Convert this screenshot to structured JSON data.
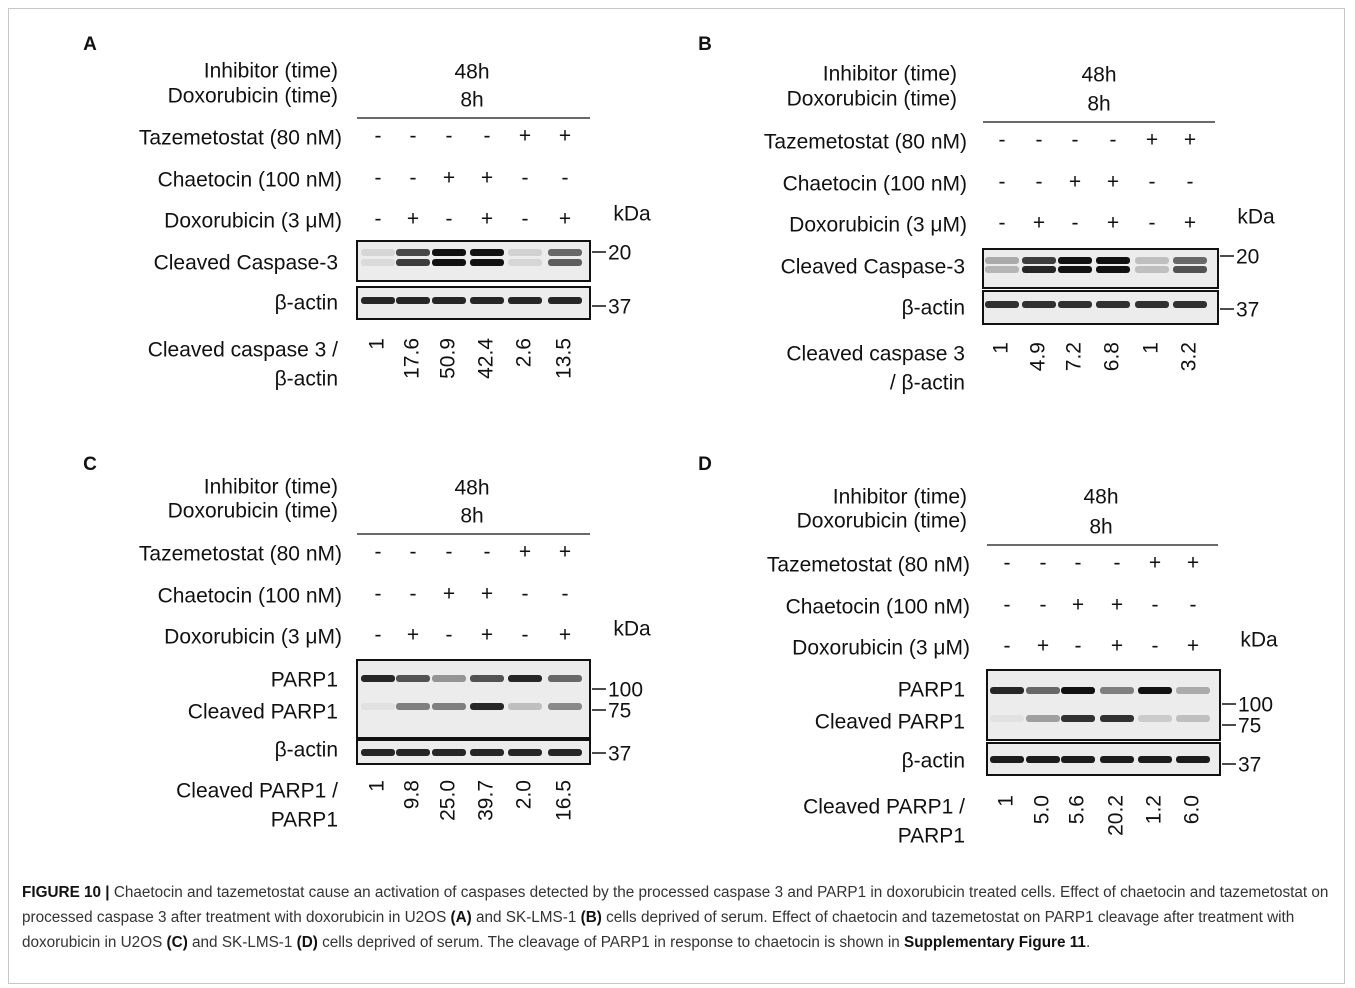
{
  "panels": [
    {
      "label": "A",
      "header": {
        "row_labels": [
          "Inhibitor (time)",
          "Doxorubicin (time)"
        ],
        "times": [
          "48h",
          "8h"
        ]
      },
      "treatments": [
        {
          "name": "Tazemetostat (80 nM)",
          "signs": [
            "-",
            "-",
            "-",
            "-",
            "+",
            "+"
          ]
        },
        {
          "name": "Chaetocin (100 nM)",
          "signs": [
            "-",
            "-",
            "+",
            "+",
            "-",
            "-"
          ]
        },
        {
          "name": "Doxorubicin (3 μM)",
          "signs": [
            "-",
            "+",
            "-",
            "+",
            "-",
            "+"
          ]
        }
      ],
      "kda": "kDa",
      "blots": [
        {
          "labels": [
            "Cleaved Caspase-3"
          ],
          "markers": [
            "20"
          ]
        },
        {
          "labels": [
            "β-actin"
          ],
          "markers": [
            "37"
          ]
        }
      ],
      "quantification": {
        "label": [
          "Cleaved caspase 3 /",
          "β-actin"
        ],
        "values": [
          "1",
          "17.6",
          "50.9",
          "42.4",
          "2.6",
          "13.5"
        ]
      }
    },
    {
      "label": "B",
      "header": {
        "row_labels": [
          "Inhibitor (time)",
          "Doxorubicin (time)"
        ],
        "times": [
          "48h",
          "8h"
        ]
      },
      "treatments": [
        {
          "name": "Tazemetostat (80 nM)",
          "signs": [
            "-",
            "-",
            "-",
            "-",
            "+",
            "+"
          ]
        },
        {
          "name": "Chaetocin (100 nM)",
          "signs": [
            "-",
            "-",
            "+",
            "+",
            "-",
            "-"
          ]
        },
        {
          "name": "Doxorubicin (3 μM)",
          "signs": [
            "-",
            "+",
            "-",
            "+",
            "-",
            "+"
          ]
        }
      ],
      "kda": "kDa",
      "blots": [
        {
          "labels": [
            "Cleaved Caspase-3"
          ],
          "markers": [
            "20"
          ]
        },
        {
          "labels": [
            "β-actin"
          ],
          "markers": [
            "37"
          ]
        }
      ],
      "quantification": {
        "label": [
          "Cleaved caspase 3",
          "/ β-actin"
        ],
        "values": [
          "1",
          "4.9",
          "7.2",
          "6.8",
          "1",
          "3.2"
        ]
      }
    },
    {
      "label": "C",
      "header": {
        "row_labels": [
          "Inhibitor (time)",
          "Doxorubicin (time)"
        ],
        "times": [
          "48h",
          "8h"
        ]
      },
      "treatments": [
        {
          "name": "Tazemetostat (80 nM)",
          "signs": [
            "-",
            "-",
            "-",
            "-",
            "+",
            "+"
          ]
        },
        {
          "name": "Chaetocin (100 nM)",
          "signs": [
            "-",
            "-",
            "+",
            "+",
            "-",
            "-"
          ]
        },
        {
          "name": "Doxorubicin (3 μM)",
          "signs": [
            "-",
            "+",
            "-",
            "+",
            "-",
            "+"
          ]
        }
      ],
      "kda": "kDa",
      "blots": [
        {
          "labels": [
            "PARP1",
            "Cleaved PARP1"
          ],
          "markers": [
            "100",
            "75"
          ]
        },
        {
          "labels": [
            "β-actin"
          ],
          "markers": [
            "37"
          ]
        }
      ],
      "quantification": {
        "label": [
          "Cleaved PARP1 /",
          "PARP1"
        ],
        "values": [
          "1",
          "9.8",
          "25.0",
          "39.7",
          "2.0",
          "16.5"
        ]
      }
    },
    {
      "label": "D",
      "header": {
        "row_labels": [
          "Inhibitor (time)",
          "Doxorubicin (time)"
        ],
        "times": [
          "48h",
          "8h"
        ]
      },
      "treatments": [
        {
          "name": "Tazemetostat (80 nM)",
          "signs": [
            "-",
            "-",
            "-",
            "-",
            "+",
            "+"
          ]
        },
        {
          "name": "Chaetocin (100 nM)",
          "signs": [
            "-",
            "-",
            "+",
            "+",
            "-",
            "-"
          ]
        },
        {
          "name": "Doxorubicin (3 μM)",
          "signs": [
            "-",
            "+",
            "-",
            "+",
            "-",
            "+"
          ]
        }
      ],
      "kda": "kDa",
      "blots": [
        {
          "labels": [
            "PARP1",
            "Cleaved PARP1"
          ],
          "markers": [
            "100",
            "75"
          ]
        },
        {
          "labels": [
            "β-actin"
          ],
          "markers": [
            "37"
          ]
        }
      ],
      "quantification": {
        "label": [
          "Cleaved PARP1 /",
          "PARP1"
        ],
        "values": [
          "1",
          "5.0",
          "5.6",
          "20.2",
          "1.2",
          "6.0"
        ]
      }
    }
  ],
  "caption": {
    "segments": [
      {
        "text": "FIGURE 10 |",
        "bold": true
      },
      {
        "text": " Chaetocin and tazemetostat cause an activation of caspases detected by the processed caspase 3 and PARP1 in doxorubicin treated cells. Effect of chaetocin and tazemetostat on processed caspase 3 after treatment with doxorubicin in U2OS ",
        "bold": false
      },
      {
        "text": "(A)",
        "bold": true
      },
      {
        "text": " and SK-LMS-1 ",
        "bold": false
      },
      {
        "text": "(B)",
        "bold": true
      },
      {
        "text": " cells deprived of serum. Effect of chaetocin and tazemetostat on PARP1 cleavage after treatment with doxorubicin in U2OS ",
        "bold": false
      },
      {
        "text": "(C)",
        "bold": true
      },
      {
        "text": " and SK-LMS-1 ",
        "bold": false
      },
      {
        "text": "(D)",
        "bold": true
      },
      {
        "text": " cells deprived of serum. The cleavage of PARP1 in response to chaetocin is shown in ",
        "bold": false
      },
      {
        "text": "Supplementary Figure 11",
        "bold": true
      },
      {
        "text": ".",
        "bold": false
      }
    ]
  }
}
